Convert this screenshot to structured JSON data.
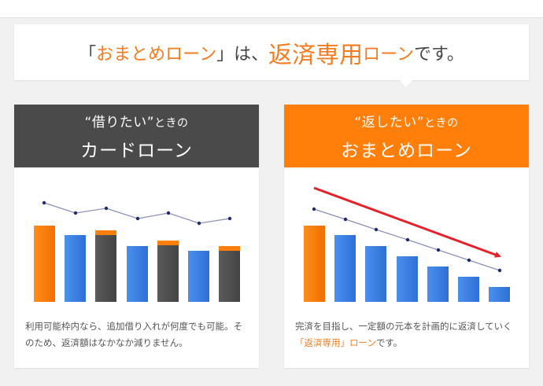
{
  "headline": {
    "open_bracket": "「",
    "product": "おまとめローン",
    "close_bracket": "」",
    "middle": "は、",
    "key": "返済専用",
    "product_suffix": "ローン",
    "tail": "です。"
  },
  "cards": [
    {
      "sub_em": "“借りたい”",
      "sub_rest": "ときの",
      "title": "カードローン",
      "description": "利用可能枠内なら、追加借り入れが何度でも可能。そのため、返済額はなかなか減りません。",
      "header_color": "#4a4a4a"
    },
    {
      "sub_em": "“返したい”",
      "sub_rest": "ときの",
      "title": "おまとめローン",
      "description_start": "完済を目指し、一定額の元本を計画的に返済していく",
      "description_highlight": "「返済専用」ローン",
      "description_end": "です。",
      "header_color": "#ff7f0a"
    }
  ],
  "colors": {
    "orange": "#ff7f0a",
    "blue": "#3a7fe0",
    "dark": "#555555",
    "line": "#8a8fb8",
    "arrow": "#e8202a"
  }
}
